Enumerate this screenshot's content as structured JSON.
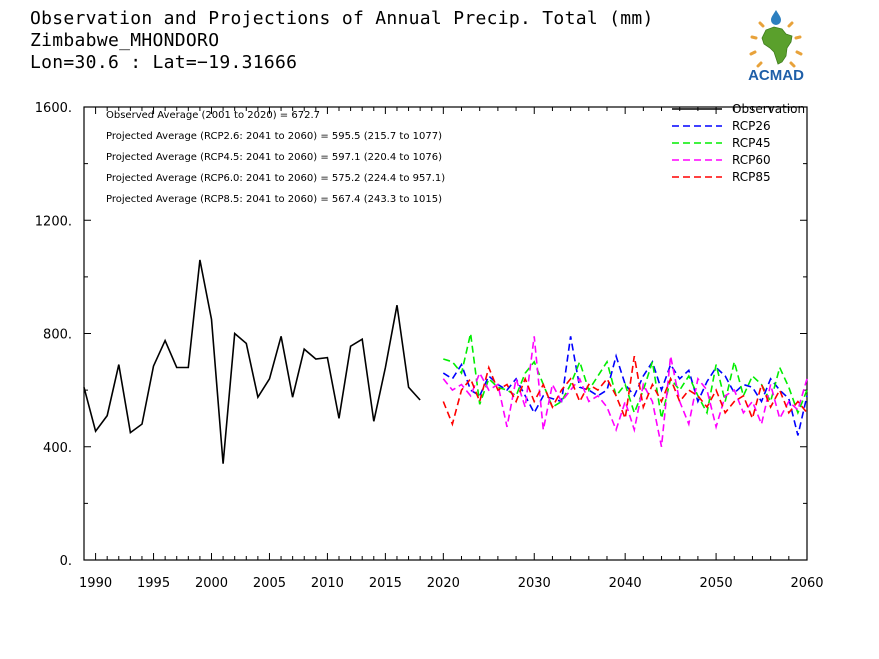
{
  "title": {
    "line1": "Observation and Projections of Annual Precip. Total (mm)",
    "line2": "Zimbabwe_MHONDORO",
    "line3": "Lon=30.6 : Lat=−19.31666"
  },
  "logo": {
    "text": "ACMAD",
    "colors": {
      "africa": "#5aa02c",
      "text": "#1f5fa8",
      "sun": "#e8a23a",
      "drop": "#2c7fc0"
    }
  },
  "chart_data": {
    "type": "line",
    "title": "Observation and Projections of Annual Precip. Total (mm)",
    "xlabel": "",
    "ylabel": "",
    "xlim": [
      1989,
      2060
    ],
    "ylim": [
      0,
      1600
    ],
    "y_ticks": [
      0,
      400,
      800,
      1200,
      1600
    ],
    "y_tick_labels": [
      "0.",
      "400.",
      "800.",
      "1200.",
      "1600."
    ],
    "x_ticks": [
      1990,
      1995,
      2000,
      2005,
      2010,
      2015,
      2020,
      2030,
      2040,
      2050,
      2060
    ],
    "x_tick_labels": [
      "1990",
      "1995",
      "2000",
      "2005",
      "2010",
      "2015",
      "2020",
      "2030",
      "2040",
      "2050",
      "2060"
    ],
    "axis_breaks": [
      {
        "from": 1989,
        "to": 2020,
        "x_start_frac": 0.0,
        "x_end_frac": 0.497
      },
      {
        "from": 2020,
        "to": 2060,
        "x_start_frac": 0.497,
        "x_end_frac": 1.0
      }
    ],
    "grid": false,
    "legend_position": "top-right",
    "annotations": [
      "Observed Average (2001 to 2020) = 672.7",
      "Projected Average (RCP2.6: 2041 to 2060) = 595.5 (215.7 to 1077)",
      "Projected Average (RCP4.5: 2041 to 2060) = 597.1 (220.4 to 1076)",
      "Projected Average (RCP6.0: 2041 to 2060) = 575.2 (224.4 to 957.1)",
      "Projected Average (RCP8.5: 2041 to 2060) = 567.4 (243.3 to 1015)"
    ],
    "series": [
      {
        "name": "Observation",
        "color": "#000000",
        "dash": "solid",
        "x": [
          1989,
          1990,
          1991,
          1992,
          1993,
          1994,
          1995,
          1996,
          1997,
          1998,
          1999,
          2000,
          2001,
          2002,
          2003,
          2004,
          2005,
          2006,
          2007,
          2008,
          2009,
          2010,
          2011,
          2012,
          2013,
          2014,
          2015,
          2016,
          2017,
          2018,
          2019
        ],
        "values": [
          610,
          455,
          510,
          690,
          450,
          480,
          685,
          775,
          680,
          680,
          1060,
          850,
          340,
          800,
          765,
          575,
          640,
          790,
          575,
          745,
          710,
          715,
          500,
          755,
          780,
          490,
          680,
          900,
          610,
          565,
          null
        ]
      },
      {
        "name": "RCP26",
        "color": "#0000ff",
        "dash": "dashed",
        "x": [
          2020,
          2021,
          2022,
          2023,
          2024,
          2025,
          2026,
          2027,
          2028,
          2029,
          2030,
          2031,
          2032,
          2033,
          2034,
          2035,
          2036,
          2037,
          2038,
          2039,
          2040,
          2041,
          2042,
          2043,
          2044,
          2045,
          2046,
          2047,
          2048,
          2049,
          2050,
          2051,
          2052,
          2053,
          2054,
          2055,
          2056,
          2057,
          2058,
          2059,
          2060
        ],
        "values": [
          660,
          640,
          690,
          600,
          580,
          650,
          620,
          600,
          640,
          580,
          520,
          580,
          570,
          560,
          790,
          610,
          600,
          580,
          600,
          720,
          620,
          580,
          650,
          700,
          600,
          690,
          640,
          670,
          560,
          630,
          680,
          650,
          590,
          620,
          610,
          560,
          640,
          600,
          570,
          440,
          580
        ]
      },
      {
        "name": "RCP45",
        "color": "#00ee00",
        "dash": "dashed",
        "x": [
          2020,
          2021,
          2022,
          2023,
          2024,
          2025,
          2026,
          2027,
          2028,
          2029,
          2030,
          2031,
          2032,
          2033,
          2034,
          2035,
          2036,
          2037,
          2038,
          2039,
          2040,
          2041,
          2042,
          2043,
          2044,
          2045,
          2046,
          2047,
          2048,
          2049,
          2050,
          2051,
          2052,
          2053,
          2054,
          2055,
          2056,
          2057,
          2058,
          2059,
          2060
        ],
        "values": [
          710,
          700,
          660,
          800,
          550,
          640,
          610,
          600,
          580,
          660,
          700,
          620,
          540,
          560,
          620,
          700,
          600,
          650,
          700,
          580,
          620,
          520,
          600,
          700,
          500,
          640,
          600,
          650,
          580,
          520,
          690,
          560,
          700,
          580,
          650,
          620,
          560,
          680,
          610,
          520,
          600
        ]
      },
      {
        "name": "RCP60",
        "color": "#ff00ff",
        "dash": "dashed",
        "x": [
          2020,
          2021,
          2022,
          2023,
          2024,
          2025,
          2026,
          2027,
          2028,
          2029,
          2030,
          2031,
          2032,
          2033,
          2034,
          2035,
          2036,
          2037,
          2038,
          2039,
          2040,
          2041,
          2042,
          2043,
          2044,
          2045,
          2046,
          2047,
          2048,
          2049,
          2050,
          2051,
          2052,
          2053,
          2054,
          2055,
          2056,
          2057,
          2058,
          2059,
          2060
        ],
        "values": [
          640,
          600,
          620,
          580,
          660,
          600,
          620,
          470,
          640,
          540,
          790,
          460,
          620,
          560,
          600,
          640,
          560,
          580,
          540,
          460,
          560,
          460,
          620,
          560,
          400,
          720,
          560,
          480,
          640,
          600,
          470,
          580,
          600,
          520,
          560,
          480,
          620,
          500,
          560,
          530,
          640
        ]
      },
      {
        "name": "RCP85",
        "color": "#ff0000",
        "dash": "dashed",
        "x": [
          2020,
          2021,
          2022,
          2023,
          2024,
          2025,
          2026,
          2027,
          2028,
          2029,
          2030,
          2031,
          2032,
          2033,
          2034,
          2035,
          2036,
          2037,
          2038,
          2039,
          2040,
          2041,
          2042,
          2043,
          2044,
          2045,
          2046,
          2047,
          2048,
          2049,
          2050,
          2051,
          2052,
          2053,
          2054,
          2055,
          2056,
          2057,
          2058,
          2059,
          2060
        ],
        "values": [
          560,
          480,
          600,
          640,
          560,
          680,
          600,
          620,
          560,
          640,
          560,
          620,
          540,
          600,
          640,
          560,
          620,
          600,
          640,
          580,
          500,
          720,
          540,
          620,
          560,
          640,
          560,
          600,
          580,
          540,
          600,
          520,
          560,
          580,
          500,
          620,
          540,
          600,
          520,
          560,
          520
        ]
      }
    ]
  }
}
